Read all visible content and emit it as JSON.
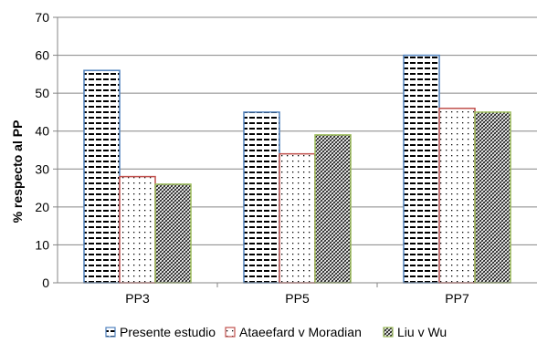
{
  "chart_data": {
    "type": "bar",
    "categories": [
      "PP3",
      "PP5",
      "PP7"
    ],
    "series": [
      {
        "name": "Presente estudio",
        "values": [
          56,
          45,
          60
        ],
        "color": "#4f81bd",
        "pattern": "dashes"
      },
      {
        "name": "Ataeefard v Moradian",
        "values": [
          28,
          34,
          46
        ],
        "color": "#c0504d",
        "pattern": "dots"
      },
      {
        "name": "Liu v Wu",
        "values": [
          26,
          39,
          45
        ],
        "color": "#9bbb59",
        "pattern": "crosshatch"
      }
    ],
    "ylabel": "% respecto al PP",
    "ylim": [
      0,
      70
    ],
    "yticks": [
      0,
      10,
      20,
      30,
      40,
      50,
      60,
      70
    ],
    "grid": true,
    "legend": "bottom"
  }
}
